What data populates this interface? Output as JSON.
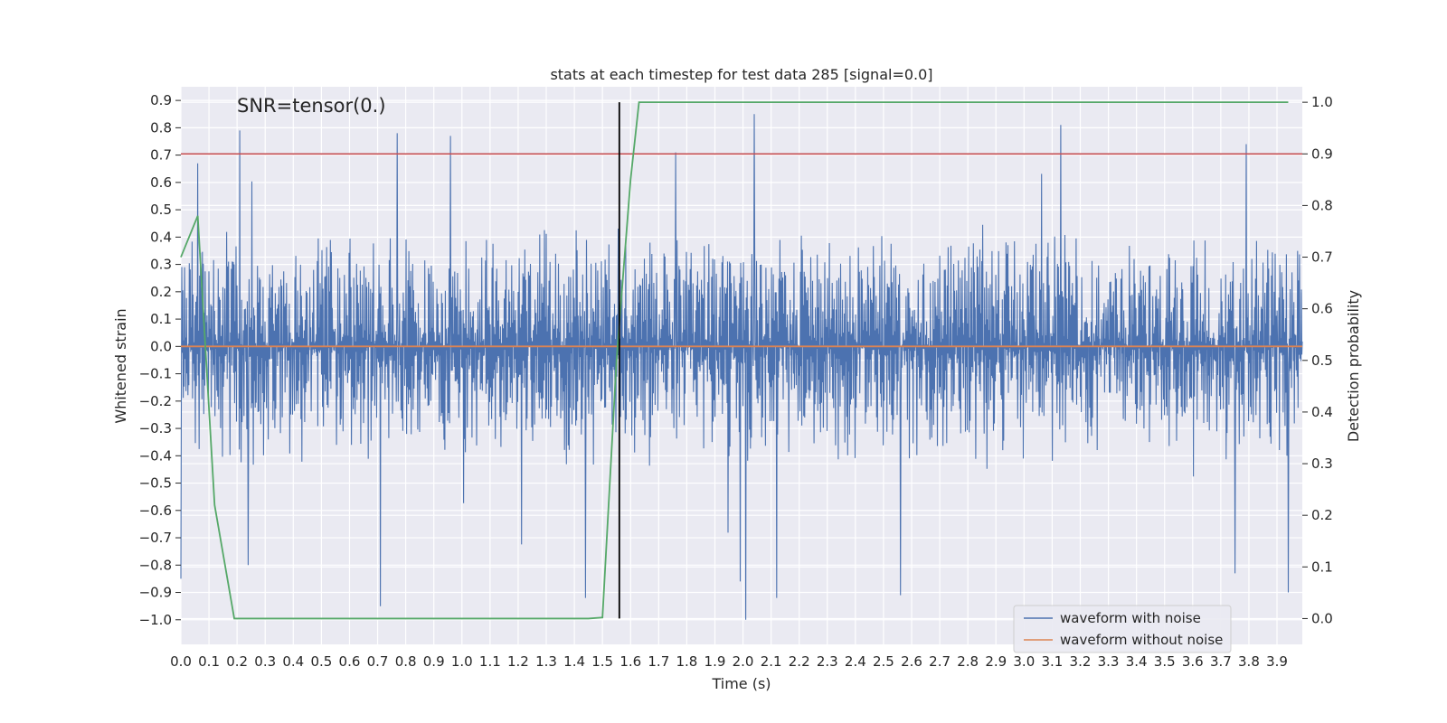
{
  "chart_data": {
    "type": "line",
    "title": "stats at each timestep for test data 285 [signal=0.0]",
    "xlabel": "Time (s)",
    "ylabel": "Whitened strain",
    "y2label": "Detection probability",
    "annotation": "SNR=tensor(0.)",
    "xlim": [
      0.0,
      3.99
    ],
    "ylim": [
      -1.09,
      0.95
    ],
    "y2lim": [
      -0.05,
      1.03
    ],
    "x_ticks": [
      0.0,
      0.1,
      0.2,
      0.3,
      0.4,
      0.5,
      0.6,
      0.7,
      0.8,
      0.9,
      1.0,
      1.1,
      1.2,
      1.3,
      1.4,
      1.5,
      1.6,
      1.7,
      1.8,
      1.9,
      2.0,
      2.1,
      2.2,
      2.3,
      2.4,
      2.5,
      2.6,
      2.7,
      2.8,
      2.9,
      3.0,
      3.1,
      3.2,
      3.3,
      3.4,
      3.5,
      3.6,
      3.7,
      3.8,
      3.9
    ],
    "y_ticks": [
      -1.0,
      -0.9,
      -0.8,
      -0.7,
      -0.6,
      -0.5,
      -0.4,
      -0.3,
      -0.2,
      -0.1,
      0.0,
      0.1,
      0.2,
      0.3,
      0.4,
      0.5,
      0.6,
      0.7,
      0.8,
      0.9
    ],
    "y2_ticks": [
      0.0,
      0.1,
      0.2,
      0.3,
      0.4,
      0.5,
      0.6,
      0.7,
      0.8,
      0.9,
      1.0
    ],
    "grid": true,
    "legend_position": "lower-right",
    "series": [
      {
        "name": "waveform with noise",
        "axis": "left",
        "color": "#4c72b0",
        "description_kind": "noise",
        "x_start": 0.0,
        "x_end": 3.99,
        "amplitude_envelope": [
          0.45,
          0.85
        ],
        "peaks": [
          {
            "x": 0.0,
            "y": -0.85
          },
          {
            "x": 0.06,
            "y": 0.67
          },
          {
            "x": 0.21,
            "y": 0.79
          },
          {
            "x": 0.24,
            "y": -0.8
          },
          {
            "x": 0.71,
            "y": -0.95
          },
          {
            "x": 0.77,
            "y": 0.78
          },
          {
            "x": 0.96,
            "y": 0.77
          },
          {
            "x": 1.44,
            "y": -0.92
          },
          {
            "x": 1.76,
            "y": 0.71
          },
          {
            "x": 1.99,
            "y": -0.86
          },
          {
            "x": 2.04,
            "y": 0.85
          },
          {
            "x": 2.01,
            "y": -1.0
          },
          {
            "x": 2.12,
            "y": -0.92
          },
          {
            "x": 2.56,
            "y": -0.91
          },
          {
            "x": 3.13,
            "y": 0.81
          },
          {
            "x": 3.79,
            "y": 0.74
          },
          {
            "x": 3.75,
            "y": -0.83
          },
          {
            "x": 3.94,
            "y": -0.9
          }
        ]
      },
      {
        "name": "waveform without noise",
        "axis": "left",
        "color": "#dd8452",
        "x": [
          0.0,
          3.99
        ],
        "y": [
          0.0,
          0.0
        ]
      },
      {
        "name": "",
        "axis": "right",
        "color": "#55a868",
        "x": [
          0.0,
          0.06,
          0.12,
          0.19,
          0.22,
          1.45,
          1.5,
          1.55,
          1.6,
          1.63,
          3.94
        ],
        "y": [
          0.7,
          0.78,
          0.22,
          0.0,
          0.0,
          0.0,
          0.002,
          0.5,
          0.85,
          1.0,
          1.0
        ]
      },
      {
        "name": "",
        "axis": "right",
        "color": "#c44e52",
        "x": [
          0.0,
          3.99
        ],
        "y": [
          0.9,
          0.9
        ]
      }
    ],
    "vertical_line": {
      "x": 1.56,
      "y2_range": [
        0.0,
        1.0
      ],
      "color": "#000000"
    }
  }
}
